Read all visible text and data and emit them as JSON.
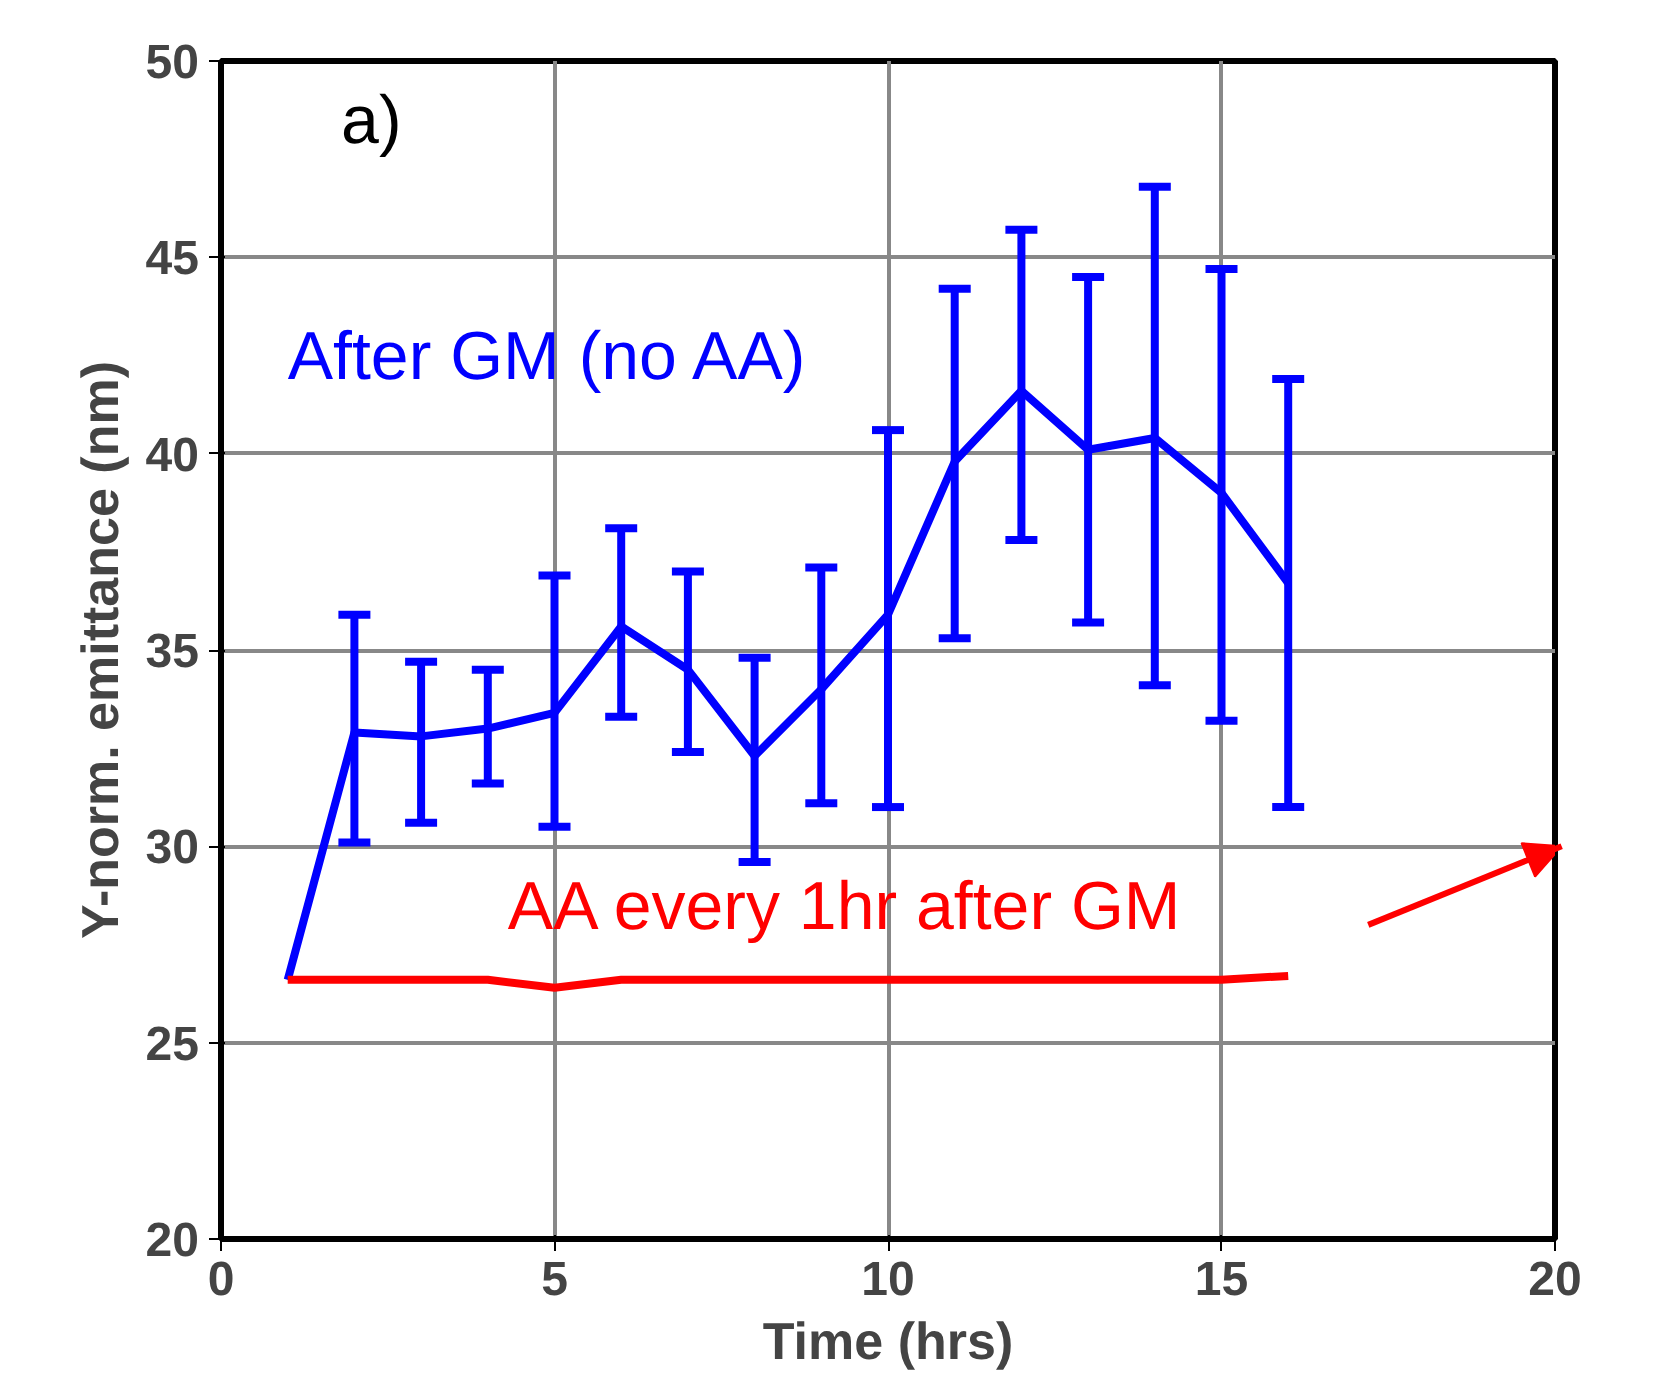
{
  "chart_data": {
    "type": "line",
    "xlabel": "Time (hrs)",
    "ylabel": "Y-norm. emittance (nm)",
    "x": [
      1,
      2,
      3,
      4,
      5,
      6,
      7,
      8,
      9,
      10,
      11,
      12,
      13,
      14,
      15,
      16
    ],
    "series": [
      {
        "name": "After GM (no AA)",
        "color": "#0000ff",
        "values": [
          26.6,
          32.9,
          32.8,
          33.0,
          33.4,
          35.6,
          34.5,
          32.3,
          34.0,
          35.9,
          39.8,
          41.6,
          40.1,
          40.4,
          39.0,
          36.7
        ],
        "errors": [
          null,
          [
            30.1,
            35.9
          ],
          [
            30.6,
            34.7
          ],
          [
            31.6,
            34.5
          ],
          [
            30.5,
            36.9
          ],
          [
            33.3,
            38.1
          ],
          [
            32.4,
            37.0
          ],
          [
            29.6,
            34.8
          ],
          [
            31.1,
            37.1
          ],
          [
            31.0,
            40.6
          ],
          [
            35.3,
            44.2
          ],
          [
            37.8,
            45.7
          ],
          [
            35.7,
            44.5
          ],
          [
            34.1,
            46.8
          ],
          [
            33.2,
            44.7
          ],
          [
            31.0,
            41.9
          ]
        ]
      },
      {
        "name": "AA every 1hr after GM",
        "color": "#ff0000",
        "values": [
          26.6,
          26.6,
          26.6,
          26.6,
          26.4,
          26.6,
          26.6,
          26.6,
          26.6,
          26.6,
          26.6,
          26.6,
          26.6,
          26.6,
          26.6,
          26.7
        ]
      }
    ],
    "annotations": [
      "a)"
    ],
    "xlim": [
      0,
      20
    ],
    "ylim": [
      20,
      50
    ],
    "xticks": [
      0,
      5,
      10,
      15,
      20
    ],
    "yticks": [
      20,
      25,
      30,
      35,
      40,
      45,
      50
    ],
    "grid": true,
    "marker": "none",
    "line_style": "solid"
  }
}
